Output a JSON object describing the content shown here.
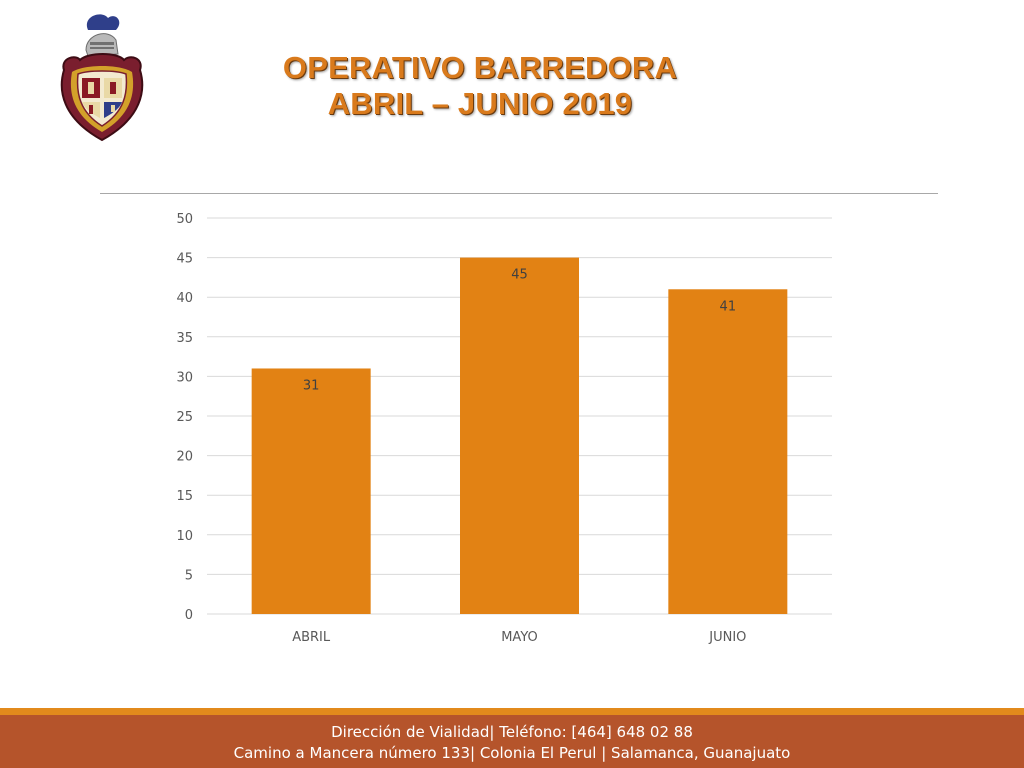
{
  "title": {
    "line1": "OPERATIVO BARREDORA",
    "line2": "ABRIL – JUNIO 2019"
  },
  "logo": {
    "icon": "coat-of-arms-icon"
  },
  "colors": {
    "bar": "#e28214",
    "title": "#d97a1c",
    "footer": "#b5542b",
    "footer_stripe": "#e28a1c"
  },
  "footer": {
    "line1": "Dirección de Vialidad| Teléfono: [464] 648 02 88",
    "line2": "Camino a Mancera número 133| Colonia El Perul | Salamanca, Guanajuato"
  },
  "chart_data": {
    "type": "bar",
    "categories": [
      "ABRIL",
      "MAYO",
      "JUNIO"
    ],
    "values": [
      31,
      45,
      41
    ],
    "ylim": [
      0,
      50
    ],
    "yticks": [
      0,
      5,
      10,
      15,
      20,
      25,
      30,
      35,
      40,
      45,
      50
    ],
    "grid": true,
    "data_labels": true,
    "title": "",
    "xlabel": "",
    "ylabel": ""
  }
}
